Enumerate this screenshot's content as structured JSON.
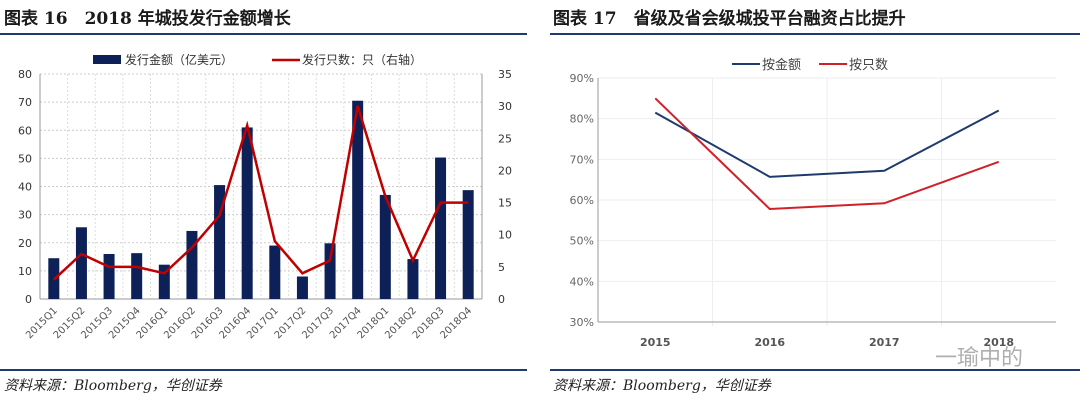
{
  "left": {
    "title": "图表 16　2018 年城投发行金额增长",
    "source": "资料来源：Bloomberg，华创证券"
  },
  "right": {
    "title": "图表 17　省级及省会级城投平台融资占比提升",
    "source": "资料来源：Bloomberg，华创证券",
    "watermark": "一瑜中的"
  },
  "chart_data": [
    {
      "type": "bar+line",
      "categories": [
        "2015Q1",
        "2015Q2",
        "2015Q3",
        "2015Q4",
        "2016Q1",
        "2016Q2",
        "2016Q3",
        "2016Q4",
        "2017Q1",
        "2017Q2",
        "2017Q3",
        "2017Q4",
        "2018Q1",
        "2018Q2",
        "2018Q3",
        "2018Q4"
      ],
      "series": [
        {
          "name": "发行金额（亿美元）",
          "type": "bar",
          "axis": "left",
          "color": "#0d2158",
          "values": [
            14.5,
            25.5,
            16,
            16.3,
            12.2,
            24.2,
            40.5,
            61,
            19,
            8,
            19.8,
            70.5,
            37,
            14.2,
            50.3,
            38.7
          ]
        },
        {
          "name": "发行只数：只（右轴）",
          "type": "line",
          "axis": "right",
          "color": "#c00000",
          "values": [
            3,
            7,
            5,
            5,
            4,
            8,
            13,
            27,
            9,
            4,
            6,
            30,
            16,
            6,
            15,
            15
          ]
        }
      ],
      "ylim": [
        0,
        80
      ],
      "yticks": [
        0,
        10,
        20,
        30,
        40,
        50,
        60,
        70,
        80
      ],
      "y2lim": [
        0,
        35
      ],
      "y2ticks": [
        0,
        5,
        10,
        15,
        20,
        25,
        30,
        35
      ],
      "grid": true,
      "legend": "top"
    },
    {
      "type": "line",
      "categories": [
        "2015",
        "2016",
        "2017",
        "2018"
      ],
      "series": [
        {
          "name": "按金额",
          "color": "#1f3a6e",
          "values": [
            81.5,
            65.7,
            67.2,
            82
          ]
        },
        {
          "name": "按只数",
          "color": "#d0202a",
          "values": [
            85,
            57.8,
            59.2,
            69.4
          ]
        }
      ],
      "ylim": [
        30,
        90
      ],
      "yticks": [
        "30%",
        "40%",
        "50%",
        "60%",
        "70%",
        "80%",
        "90%"
      ],
      "grid": true,
      "legend": "top"
    }
  ]
}
